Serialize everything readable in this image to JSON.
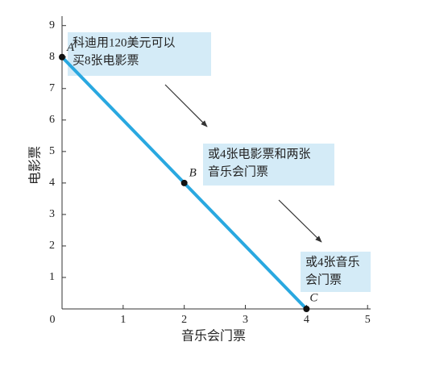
{
  "chart_data": {
    "type": "line",
    "x_label": "音乐会门票",
    "y_label": "电影票",
    "x": [
      0,
      2,
      4
    ],
    "values": [
      8,
      4,
      0
    ],
    "color": "#29a8e0",
    "point_labels": [
      "A",
      "B",
      "C"
    ],
    "xlim": [
      0,
      5.05
    ],
    "ylim": [
      0,
      9.3
    ],
    "xticks": [
      0,
      1,
      2,
      3,
      4,
      5
    ],
    "yticks": [
      1,
      2,
      3,
      4,
      5,
      6,
      7,
      8,
      9
    ],
    "annotations": [
      {
        "lines": [
          "科迪用120美元可以",
          "买8张电影票"
        ]
      },
      {
        "lines": [
          "或4张电影票和两张",
          "音乐会门票"
        ]
      },
      {
        "lines": [
          "或4张音乐",
          "会门票"
        ]
      }
    ]
  }
}
